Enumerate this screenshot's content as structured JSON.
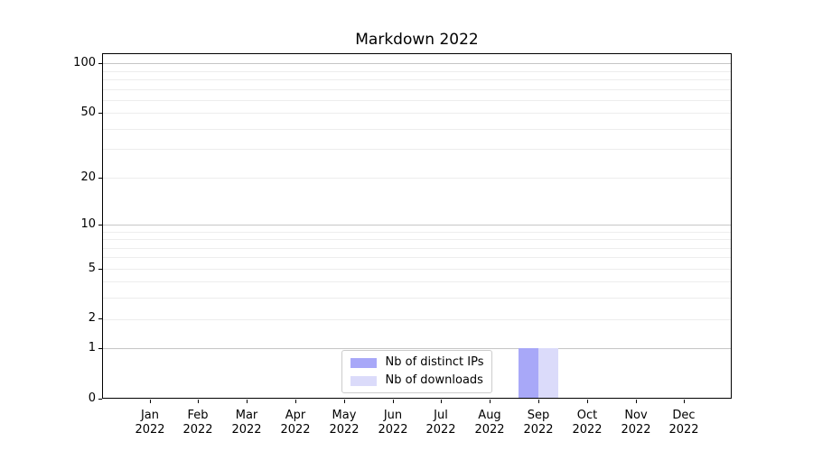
{
  "title": "Markdown 2022",
  "chart_data": {
    "type": "bar",
    "title": "Markdown 2022",
    "categories": [
      "Jan 2022",
      "Feb 2022",
      "Mar 2022",
      "Apr 2022",
      "May 2022",
      "Jun 2022",
      "Jul 2022",
      "Aug 2022",
      "Sep 2022",
      "Oct 2022",
      "Nov 2022",
      "Dec 2022"
    ],
    "series": [
      {
        "name": "Nb of distinct IPs",
        "color": "#a8a8f8",
        "values": [
          0,
          0,
          0,
          0,
          0,
          0,
          0,
          0,
          1,
          0,
          0,
          0
        ]
      },
      {
        "name": "Nb of downloads",
        "color": "#dbdbfa",
        "values": [
          0,
          0,
          0,
          0,
          0,
          0,
          0,
          0,
          1,
          0,
          0,
          0
        ]
      }
    ],
    "xlabel": "",
    "ylabel": "",
    "yscale": "log1p",
    "ylim": [
      0,
      115
    ],
    "yticks": [
      0,
      1,
      2,
      5,
      10,
      20,
      50,
      100
    ],
    "minor_yticks": [
      3,
      4,
      6,
      7,
      8,
      9,
      30,
      40,
      60,
      70,
      80,
      90
    ],
    "grid": "horizontal",
    "legend_position": "lower center"
  },
  "colors": {
    "major_grid": "#c6c6c6",
    "minor_grid": "#ededed",
    "spine": "#000000",
    "legend_border": "#cccccc",
    "background": "#ffffff"
  }
}
